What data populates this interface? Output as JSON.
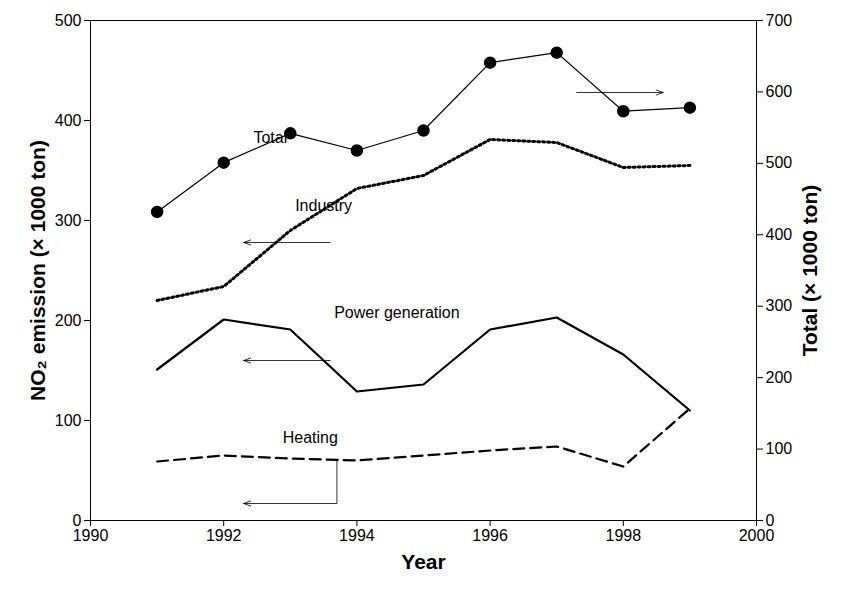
{
  "chart_data": {
    "type": "line",
    "x_label": "Year",
    "y_label": "NO₂ emission (× 1000 ton)",
    "y2_label": "Total (× 1000 ton)",
    "x": [
      1991,
      1992,
      1993,
      1994,
      1995,
      1996,
      1997,
      1998,
      1999
    ],
    "xlim": [
      1990,
      2000
    ],
    "xticks": [
      1990,
      1992,
      1994,
      1996,
      1998,
      2000
    ],
    "ylim": [
      0,
      500
    ],
    "yticks": [
      0,
      100,
      200,
      300,
      400,
      500
    ],
    "y2lim": [
      0,
      700
    ],
    "y2ticks": [
      0,
      100,
      200,
      300,
      400,
      500,
      600,
      700
    ],
    "grid": false,
    "series": [
      {
        "name": "Total",
        "axis": "y2",
        "color": "#000000",
        "line_style": "solid",
        "marker": "circle",
        "values": [
          432,
          501,
          542,
          518,
          546,
          641,
          655,
          573,
          578
        ]
      },
      {
        "name": "Industry",
        "color": "#000000",
        "line_style": "dotted",
        "marker": "none",
        "values": [
          220,
          234,
          290,
          332,
          345,
          381,
          378,
          353,
          355
        ]
      },
      {
        "name": "Power generation",
        "color": "#000000",
        "line_style": "solid",
        "marker": "none",
        "values": [
          151,
          201,
          191,
          129,
          136,
          191,
          203,
          166,
          110
        ]
      },
      {
        "name": "Heating",
        "color": "#000000",
        "line_style": "dashed",
        "marker": "none",
        "values": [
          59,
          65,
          62,
          60,
          65,
          70,
          74,
          54,
          112
        ]
      }
    ]
  }
}
